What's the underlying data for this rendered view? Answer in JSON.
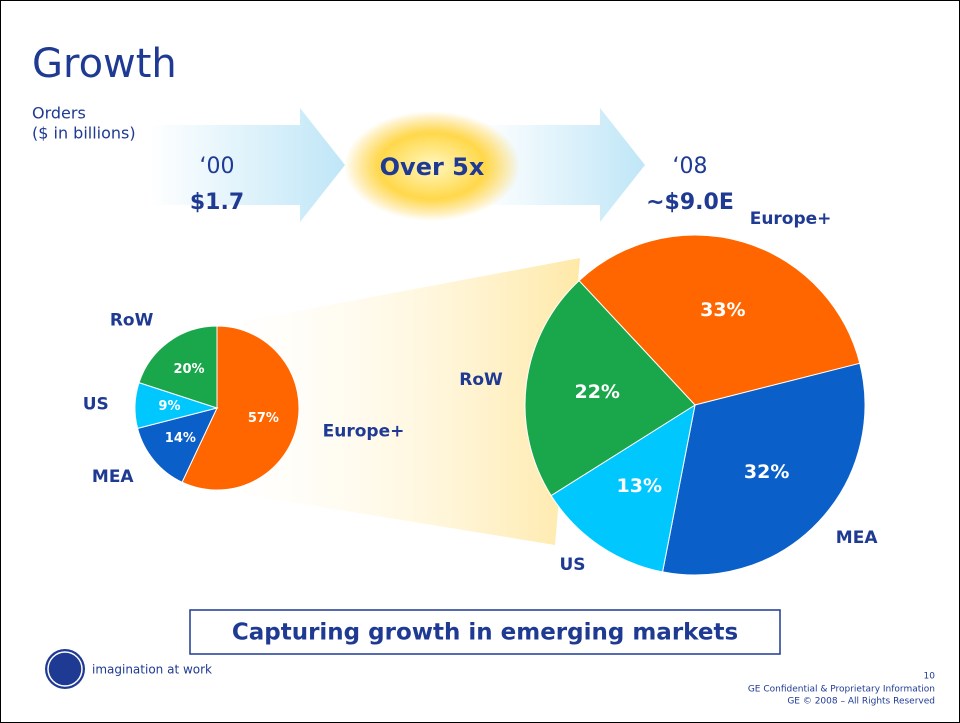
{
  "title": "Growth",
  "subtitle": "Orders",
  "units": "($ in billions)",
  "growth": "Over 5x",
  "callout": "Capturing growth in emerging markets",
  "footer": {
    "slogan": "imagination at work",
    "page": "10",
    "confidential": "GE Confidential & Proprietary Information",
    "copyright": "GE © 2008 – All Rights Reserved"
  },
  "chart_data": [
    {
      "type": "pie",
      "title": "‘00",
      "subtitle": "$1.7",
      "startangle": 0,
      "categories": [
        "Europe+",
        "MEA",
        "US",
        "RoW"
      ],
      "values": [
        57,
        14,
        9,
        20
      ],
      "value_labels": [
        "57%",
        "14%",
        "9%",
        "20%"
      ],
      "colors": [
        "#ff6600",
        "#0a5fc8",
        "#00c8ff",
        "#1aa64a"
      ]
    },
    {
      "type": "pie",
      "title": "‘08",
      "subtitle": "~$9.0E",
      "startangle": -43,
      "categories": [
        "Europe+",
        "MEA",
        "US",
        "RoW"
      ],
      "values": [
        33,
        32,
        13,
        22
      ],
      "value_labels": [
        "33%",
        "32%",
        "13%",
        "22%"
      ],
      "colors": [
        "#ff6600",
        "#0a5fc8",
        "#00c8ff",
        "#1aa64a"
      ]
    }
  ]
}
